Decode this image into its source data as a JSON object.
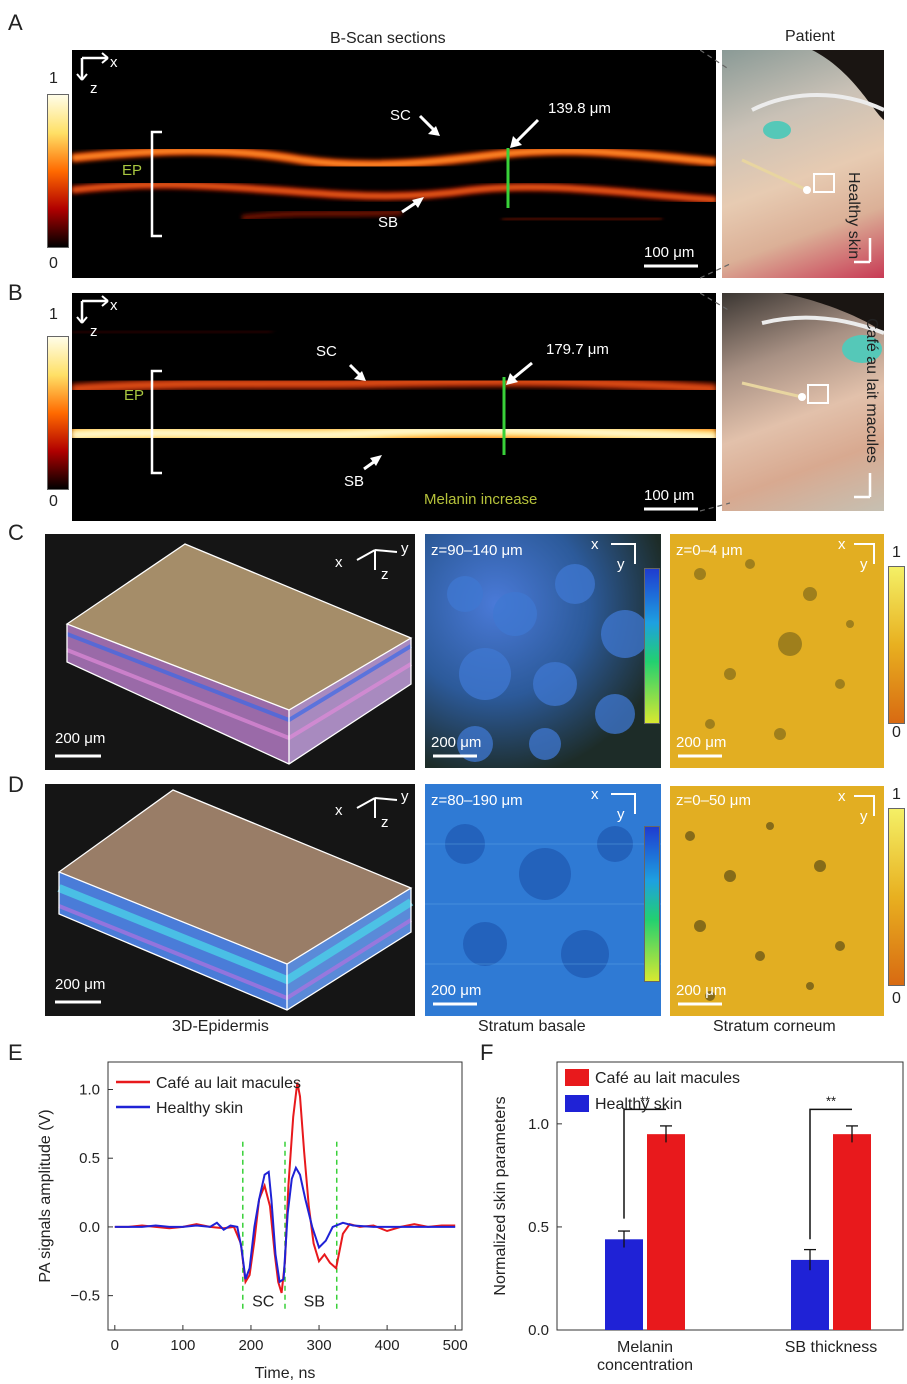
{
  "panels": {
    "A": {
      "letter": "A",
      "title": "B-Scan sections",
      "patient_title": "Patient",
      "side_label": "Healthy skin",
      "cbar_max": "1",
      "cbar_min": "0",
      "axis_x": "x",
      "axis_z": "z",
      "ep_label": "EP",
      "sc_label": "SC",
      "sb_label": "SB",
      "thickness": "139.8 μm",
      "scale": "100 μm"
    },
    "B": {
      "letter": "B",
      "side_label": "Café au lait macules",
      "cbar_max": "1",
      "cbar_min": "0",
      "axis_x": "x",
      "axis_z": "z",
      "ep_label": "EP",
      "sc_label": "SC",
      "sb_label": "SB",
      "thickness": "179.7 μm",
      "scale": "100 μm",
      "melanin_note": "Melanin increase"
    },
    "C": {
      "letter": "C",
      "axes": {
        "x": "x",
        "y": "y",
        "z": "z"
      },
      "scale": "200 μm",
      "basale_range": "z=90–140 μm",
      "corneum_range": "z=0–4 μm",
      "cbar_max": "1",
      "cbar_min": "0"
    },
    "D": {
      "letter": "D",
      "axes": {
        "x": "x",
        "y": "y",
        "z": "z"
      },
      "scale": "200 μm",
      "basale_range": "z=80–190 μm",
      "corneum_range": "z=0–50 μm",
      "cbar_max": "1",
      "cbar_min": "0",
      "col_labels": [
        "3D-Epidermis",
        "Stratum basale",
        "Stratum corneum"
      ]
    },
    "E": {
      "letter": "E"
    },
    "F": {
      "letter": "F"
    }
  },
  "colors": {
    "cafe": "#e8191c",
    "healthy": "#1f22d6",
    "marker": "#39d139",
    "ep_text": "#a8c640",
    "melanin_text": "#b5c13a"
  },
  "chart_data": [
    {
      "id": "E",
      "type": "line",
      "xlabel": "Time, ns",
      "ylabel": "PA signals amplitude (V)",
      "xlim": [
        -10,
        510
      ],
      "ylim": [
        -0.75,
        1.2
      ],
      "xticks": [
        0,
        100,
        200,
        300,
        400,
        500
      ],
      "yticks": [
        -0.5,
        0.0,
        0.5,
        1.0
      ],
      "ytick_labels": [
        "−0.5",
        "0.0",
        "0.5",
        "1.0"
      ],
      "legend_position": "top-left",
      "guides_x": [
        188,
        250,
        326
      ],
      "region_labels": [
        {
          "text": "SC",
          "x": 218
        },
        {
          "text": "SB",
          "x": 293
        }
      ],
      "series": [
        {
          "name": "Café au lait macules",
          "color": "#e8191c",
          "x": [
            0,
            20,
            40,
            60,
            80,
            100,
            120,
            140,
            160,
            175,
            185,
            192,
            198,
            205,
            212,
            220,
            228,
            235,
            240,
            245,
            250,
            255,
            262,
            268,
            272,
            278,
            285,
            292,
            300,
            308,
            316,
            325,
            335,
            345,
            360,
            380,
            400,
            420,
            440,
            460,
            480,
            500
          ],
          "y": [
            0.0,
            0.0,
            0.01,
            0.0,
            -0.01,
            0.0,
            0.02,
            0.0,
            -0.01,
            0.0,
            -0.12,
            -0.4,
            -0.35,
            -0.1,
            0.2,
            0.3,
            0.15,
            -0.2,
            -0.4,
            -0.48,
            -0.25,
            0.3,
            0.8,
            1.05,
            0.95,
            0.55,
            0.15,
            -0.12,
            -0.25,
            -0.2,
            -0.26,
            -0.3,
            -0.05,
            0.02,
            0.0,
            0.01,
            -0.03,
            0.0,
            0.02,
            0.0,
            0.01,
            0.01
          ]
        },
        {
          "name": "Healthy skin",
          "color": "#1f22d6",
          "x": [
            0,
            20,
            40,
            60,
            80,
            100,
            120,
            140,
            150,
            160,
            170,
            180,
            186,
            192,
            198,
            205,
            212,
            220,
            226,
            230,
            236,
            242,
            248,
            254,
            260,
            266,
            272,
            280,
            290,
            300,
            310,
            320,
            335,
            350,
            380,
            420,
            460,
            500
          ],
          "y": [
            0.0,
            0.0,
            0.0,
            0.01,
            0.0,
            0.0,
            0.01,
            0.0,
            0.03,
            -0.02,
            0.01,
            0.0,
            -0.15,
            -0.38,
            -0.3,
            0.0,
            0.2,
            0.38,
            0.4,
            0.2,
            -0.2,
            -0.4,
            -0.38,
            0.1,
            0.35,
            0.43,
            0.38,
            0.2,
            0.0,
            -0.15,
            -0.1,
            0.0,
            0.03,
            0.01,
            0.0,
            0.0,
            0.0,
            0.0
          ]
        }
      ]
    },
    {
      "id": "F",
      "type": "bar",
      "ylabel": "Normalized skin parameters",
      "categories": [
        "Melanin concentration",
        "SB thickness"
      ],
      "category_lines": [
        [
          "Melanin",
          "concentration"
        ],
        [
          "SB thickness"
        ]
      ],
      "ylim": [
        0,
        1.3
      ],
      "yticks": [
        0.0,
        0.5,
        1.0
      ],
      "ytick_labels": [
        "0.0",
        "0.5",
        "1.0"
      ],
      "legend_position": "top-left",
      "significance": [
        "**",
        "**"
      ],
      "series": [
        {
          "name": "Healthy skin",
          "color": "#1f22d6",
          "values": [
            0.44,
            0.34
          ],
          "errors": [
            0.04,
            0.05
          ]
        },
        {
          "name": "Café au lait macules",
          "color": "#e8191c",
          "values": [
            0.95,
            0.95
          ],
          "errors": [
            0.04,
            0.04
          ]
        }
      ],
      "legend_order": [
        "Café au lait macules",
        "Healthy skin"
      ]
    }
  ]
}
